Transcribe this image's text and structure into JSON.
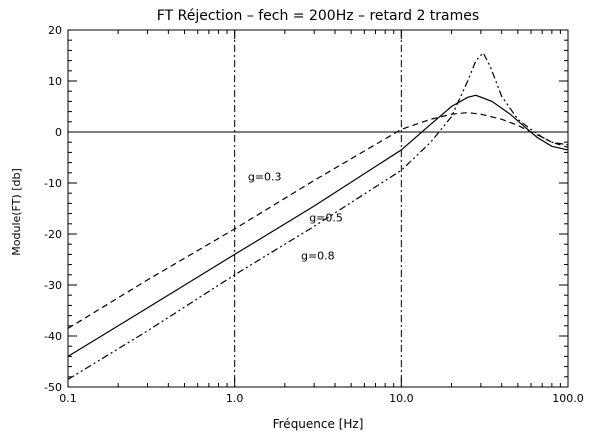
{
  "chart_data": {
    "type": "line",
    "title": "FT Réjection – fech = 200Hz – retard 2 trames",
    "xlabel": "Fréquence [Hz]",
    "ylabel": "Module(FT) [db]",
    "xscale": "log",
    "xlim": [
      0.1,
      100
    ],
    "ylim": [
      -50,
      20
    ],
    "x_ticks": [
      0.1,
      1,
      10,
      100
    ],
    "x_tick_labels": [
      "0.1",
      "1.0",
      "10.0",
      "100.0"
    ],
    "y_ticks": [
      -50,
      -40,
      -30,
      -20,
      -10,
      0,
      10,
      20
    ],
    "y_tick_labels": [
      "-50",
      "-40",
      "-30",
      "-20",
      "-10",
      "0",
      "10",
      "20"
    ],
    "grid": false,
    "reference_lines": {
      "horizontal_y": [
        0
      ],
      "vertical_x": [
        1,
        10
      ]
    },
    "series": [
      {
        "name": "g=0.3",
        "style": "dashed",
        "x": [
          0.1,
          0.3,
          1,
          3,
          10,
          15,
          20,
          25,
          30,
          40,
          50,
          60,
          70,
          80,
          100
        ],
        "y": [
          -38.5,
          -29,
          -19,
          -9.5,
          0.5,
          2.5,
          3.5,
          3.8,
          3.5,
          2.5,
          1.3,
          0,
          -1,
          -2,
          -3
        ]
      },
      {
        "name": "g=0.5",
        "style": "solid",
        "x": [
          0.1,
          0.3,
          1,
          3,
          10,
          15,
          20,
          25,
          28,
          35,
          45,
          55,
          65,
          80,
          100
        ],
        "y": [
          -44,
          -34.5,
          -24,
          -14.5,
          -3.5,
          1.5,
          5,
          6.8,
          7.2,
          6,
          3.5,
          1,
          -1,
          -2.8,
          -3.5
        ]
      },
      {
        "name": "g=0.8",
        "style": "dashdotdot",
        "x": [
          0.1,
          0.3,
          1,
          3,
          10,
          15,
          20,
          25,
          28,
          31,
          34,
          40,
          50,
          60,
          70,
          80,
          100
        ],
        "y": [
          -48.5,
          -39,
          -28,
          -18.5,
          -7.5,
          -2,
          3,
          10,
          14,
          15.5,
          13,
          7,
          2.5,
          0.5,
          -1,
          -2,
          -2.5
        ]
      }
    ],
    "annotations": [
      {
        "text": "g=0.3",
        "x": 1.2,
        "y": -9.5
      },
      {
        "text": "g=0.5",
        "x": 2.8,
        "y": -17.5
      },
      {
        "text": "g=0.8",
        "x": 2.5,
        "y": -25
      }
    ]
  }
}
